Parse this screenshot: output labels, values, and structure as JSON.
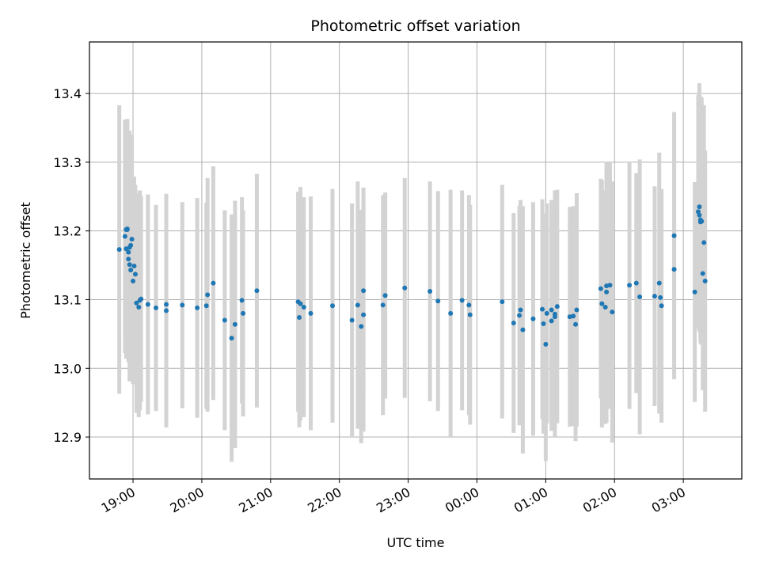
{
  "chart_data": {
    "type": "scatter",
    "title": "Photometric offset variation",
    "xlabel": "UTC time",
    "ylabel": "Photometric offset",
    "x_scale": "time",
    "x_tick_labels": [
      "19:00",
      "20:00",
      "21:00",
      "22:00",
      "23:00",
      "00:00",
      "01:00",
      "02:00",
      "03:00"
    ],
    "y_tick_labels": [
      "12.9",
      "13.0",
      "13.1",
      "13.2",
      "13.3",
      "13.4"
    ],
    "xlim": [
      "18:22",
      "03:51"
    ],
    "ylim": [
      12.839,
      13.475
    ],
    "grid": true,
    "colors": {
      "points": "#1f77b4",
      "errorbars": "#d3d3d3",
      "grid": "#b0b0b0"
    },
    "series": [
      {
        "x": [
          "18:48",
          "18:53",
          "18:54",
          "18:54",
          "18:55",
          "18:55",
          "18:56",
          "18:56",
          "18:57",
          "18:57",
          "18:58",
          "18:58",
          "18:59",
          "19:00",
          "19:01",
          "19:02",
          "19:03",
          "19:05",
          "19:06",
          "19:07",
          "19:13",
          "19:20",
          "19:29",
          "19:29",
          "19:43",
          "19:56",
          "20:04",
          "20:05",
          "20:10",
          "20:20",
          "20:26",
          "20:29",
          "20:35",
          "20:36",
          "20:48",
          "21:24",
          "21:25",
          "21:26",
          "21:29",
          "21:35",
          "21:54",
          "22:11",
          "22:16",
          "22:19",
          "22:21",
          "22:21",
          "22:38",
          "22:40",
          "22:57",
          "23:19",
          "23:26",
          "23:37",
          "23:47",
          "23:53",
          "23:54",
          "00:22",
          "00:32",
          "00:37",
          "00:38",
          "00:40",
          "00:49",
          "00:57",
          "00:58",
          "01:00",
          "01:01",
          "01:05",
          "01:05",
          "01:08",
          "01:08",
          "01:10",
          "01:21",
          "01:24",
          "01:26",
          "01:27",
          "01:48",
          "01:49",
          "01:52",
          "01:53",
          "01:53",
          "01:56",
          "01:58",
          "02:13",
          "02:19",
          "02:22",
          "02:35",
          "02:39",
          "02:40",
          "02:41",
          "02:52",
          "02:52",
          "03:10",
          "03:13",
          "03:14",
          "03:14",
          "03:15",
          "03:15",
          "03:16",
          "03:17",
          "03:18",
          "03:19"
        ],
        "y": [
          13.173,
          13.192,
          13.202,
          13.174,
          13.203,
          13.202,
          13.169,
          13.159,
          13.176,
          13.151,
          13.179,
          13.143,
          13.188,
          13.127,
          13.149,
          13.137,
          13.095,
          13.089,
          13.099,
          13.101,
          13.093,
          13.088,
          13.084,
          13.093,
          13.092,
          13.088,
          13.091,
          13.107,
          13.124,
          13.07,
          13.044,
          13.064,
          13.099,
          13.08,
          13.113,
          13.097,
          13.074,
          13.094,
          13.089,
          13.08,
          13.091,
          13.07,
          13.092,
          13.061,
          13.078,
          13.113,
          13.092,
          13.106,
          13.117,
          13.112,
          13.098,
          13.08,
          13.099,
          13.092,
          13.078,
          13.097,
          13.066,
          13.077,
          13.085,
          13.056,
          13.072,
          13.086,
          13.065,
          13.035,
          13.08,
          13.069,
          13.085,
          13.075,
          13.079,
          13.09,
          13.075,
          13.076,
          13.064,
          13.085,
          13.116,
          13.094,
          13.089,
          13.12,
          13.111,
          13.121,
          13.082,
          13.121,
          13.124,
          13.104,
          13.105,
          13.124,
          13.103,
          13.091,
          13.193,
          13.144,
          13.111,
          13.228,
          13.223,
          13.235,
          13.216,
          13.213,
          13.214,
          13.138,
          13.183,
          13.127
        ],
        "yerr": [
          0.21,
          0.17,
          0.16,
          0.16,
          0.16,
          0.16,
          0.15,
          0.15,
          0.17,
          0.17,
          0.16,
          0.16,
          0.15,
          0.15,
          0.13,
          0.13,
          0.16,
          0.16,
          0.16,
          0.15,
          0.16,
          0.15,
          0.17,
          0.14,
          0.15,
          0.16,
          0.15,
          0.17,
          0.17,
          0.16,
          0.18,
          0.18,
          0.15,
          0.15,
          0.17,
          0.16,
          0.16,
          0.17,
          0.16,
          0.17,
          0.17,
          0.17,
          0.18,
          0.17,
          0.17,
          0.15,
          0.16,
          0.15,
          0.16,
          0.16,
          0.16,
          0.18,
          0.16,
          0.16,
          0.16,
          0.17,
          0.16,
          0.16,
          0.16,
          0.18,
          0.17,
          0.16,
          0.16,
          0.17,
          0.16,
          0.16,
          0.16,
          0.16,
          0.18,
          0.17,
          0.16,
          0.16,
          0.17,
          0.17,
          0.16,
          0.18,
          0.17,
          0.17,
          0.19,
          0.18,
          0.19,
          0.18,
          0.16,
          0.2,
          0.16,
          0.19,
          0.15,
          0.17,
          0.18,
          0.16,
          0.16,
          0.17,
          0.17,
          0.18,
          0.18,
          0.17,
          0.18,
          0.17,
          0.2,
          0.19
        ]
      }
    ]
  }
}
